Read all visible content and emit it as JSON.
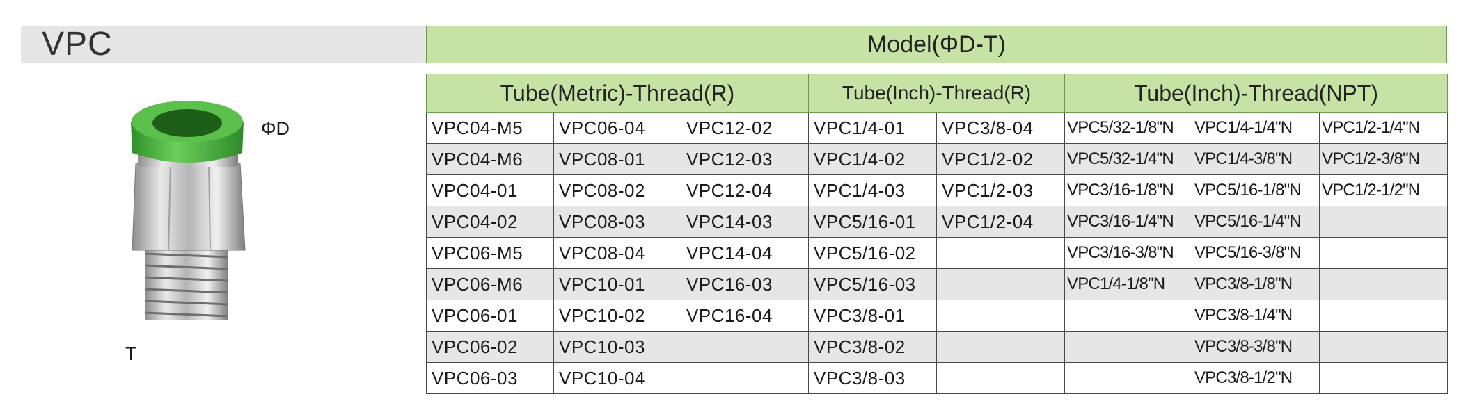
{
  "title": "VPC",
  "product_labels": {
    "diameter": "ΦD",
    "thread": "T"
  },
  "model_header": "Model(ΦD-T)",
  "groups": [
    {
      "label": "Tube(Metric)-Thread(R)"
    },
    {
      "label": "Tube(Inch)-Thread(R)"
    },
    {
      "label": "Tube(Inch)-Thread(NPT)"
    }
  ],
  "rows": [
    [
      "VPC04-M5",
      "VPC06-04",
      "VPC12-02",
      "VPC1/4-01",
      "VPC3/8-04",
      "VPC5/32-1/8\"N",
      "VPC1/4-1/4\"N",
      "VPC1/2-1/4\"N"
    ],
    [
      "VPC04-M6",
      "VPC08-01",
      "VPC12-03",
      "VPC1/4-02",
      "VPC1/2-02",
      "VPC5/32-1/4\"N",
      "VPC1/4-3/8\"N",
      "VPC1/2-3/8\"N"
    ],
    [
      "VPC04-01",
      "VPC08-02",
      "VPC12-04",
      "VPC1/4-03",
      "VPC1/2-03",
      "VPC3/16-1/8\"N",
      "VPC5/16-1/8\"N",
      "VPC1/2-1/2\"N"
    ],
    [
      "VPC04-02",
      "VPC08-03",
      "VPC14-03",
      "VPC5/16-01",
      "VPC1/2-04",
      "VPC3/16-1/4\"N",
      "VPC5/16-1/4\"N",
      ""
    ],
    [
      "VPC06-M5",
      "VPC08-04",
      "VPC14-04",
      "VPC5/16-02",
      "",
      "VPC3/16-3/8\"N",
      "VPC5/16-3/8\"N",
      ""
    ],
    [
      "VPC06-M6",
      "VPC10-01",
      "VPC16-03",
      "VPC5/16-03",
      "",
      "VPC1/4-1/8\"N",
      "VPC3/8-1/8\"N",
      ""
    ],
    [
      "VPC06-01",
      "VPC10-02",
      "VPC16-04",
      "VPC3/8-01",
      "",
      "",
      "VPC3/8-1/4\"N",
      ""
    ],
    [
      "VPC06-02",
      "VPC10-03",
      "",
      "VPC3/8-02",
      "",
      "",
      "VPC3/8-3/8\"N",
      ""
    ],
    [
      "VPC06-03",
      "VPC10-04",
      "",
      "VPC3/8-03",
      "",
      "",
      "VPC3/8-1/2\"N",
      ""
    ]
  ],
  "colors": {
    "header_green": "#c6e3a5",
    "row_shade": "#e6e6e7",
    "fitting_green": "#4caf3c"
  },
  "image_subject": "push-in-straight-fitting"
}
